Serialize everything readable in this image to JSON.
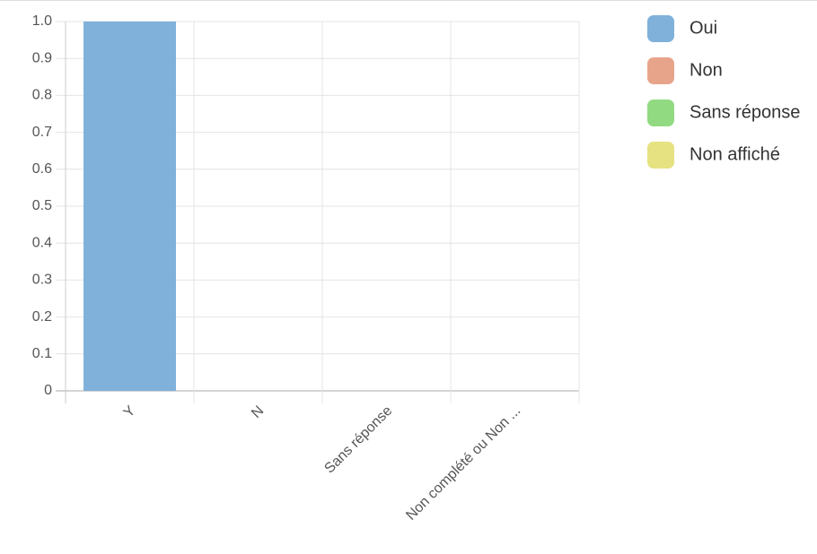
{
  "chart_data": {
    "type": "bar",
    "categories": [
      "Y",
      "N",
      "Sans réponse",
      "Non complété ou Non ..."
    ],
    "values": [
      1,
      0,
      0,
      0
    ],
    "colors": [
      "#7fb1da",
      "#e8a48b",
      "#91da81",
      "#e6e282"
    ],
    "legend": [
      "Oui",
      "Non",
      "Sans réponse",
      "Non affiché"
    ],
    "ylim": [
      0,
      1
    ],
    "yticks": [
      0,
      0.1,
      0.2,
      0.3,
      0.4,
      0.5,
      0.6,
      0.7,
      0.8,
      0.9,
      {
        "value": 1,
        "label": "1.0"
      }
    ],
    "grid": true
  }
}
